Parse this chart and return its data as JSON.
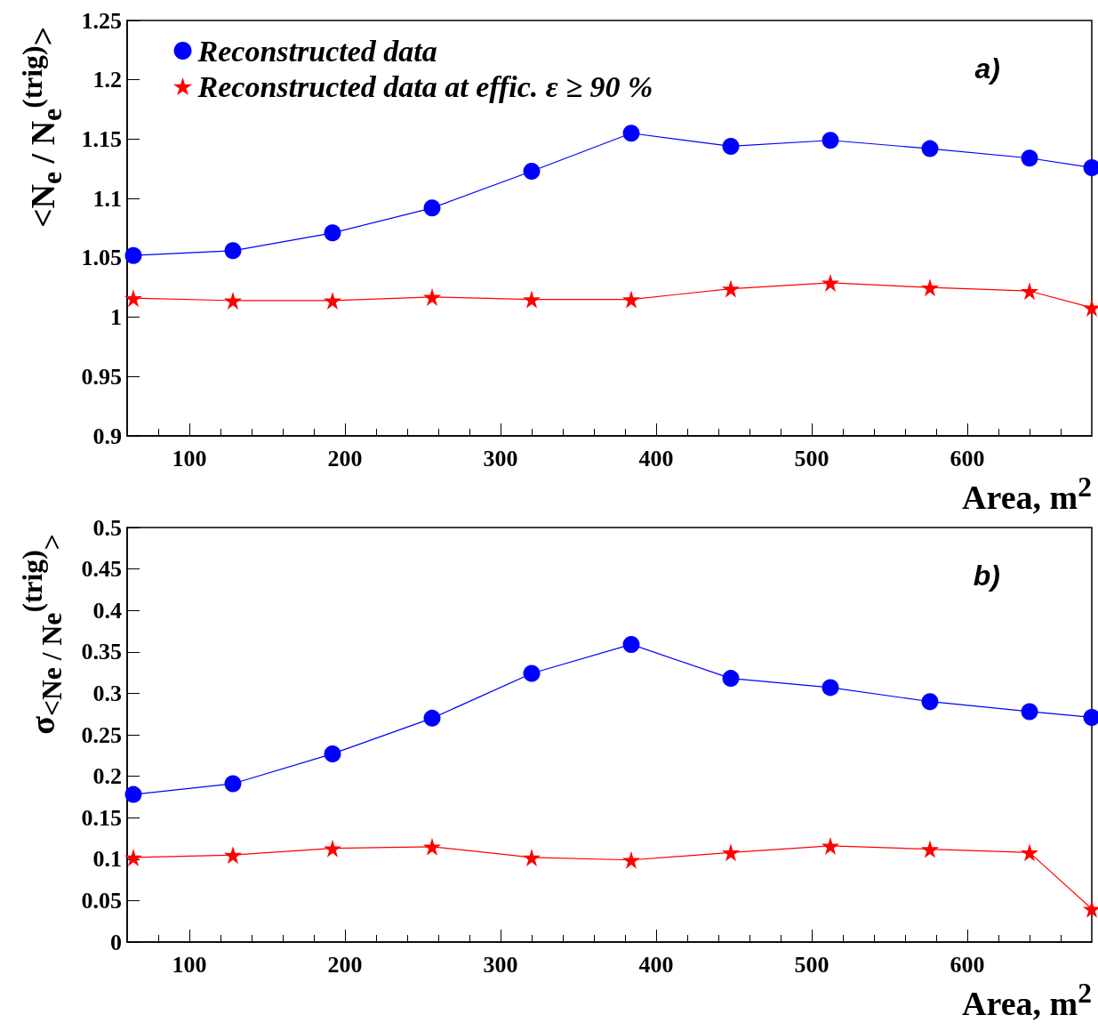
{
  "chart_data": [
    {
      "type": "line",
      "ylabel": "<N$_{e}$ / N$_{e}$$^{(trig)}$>",
      "xlabel": "Area, m$^{2}$",
      "xlim": [
        60,
        680
      ],
      "xticks": [
        100,
        200,
        300,
        400,
        500,
        600
      ],
      "ylim": [
        0.9,
        1.25
      ],
      "yticks": [
        0.9,
        0.95,
        1,
        1.05,
        1.1,
        1.15,
        1.2,
        1.25
      ],
      "grid": false,
      "legend": "top left",
      "line_style": "solid",
      "annotations": [
        "a)"
      ],
      "x": [
        64,
        128,
        192,
        256,
        320,
        384,
        448,
        512,
        576,
        640,
        680
      ],
      "series": [
        {
          "name": "Reconstructed data",
          "color": "#0000ff",
          "marker": "circle",
          "values": [
            1.052,
            1.056,
            1.071,
            1.092,
            1.123,
            1.155,
            1.144,
            1.149,
            1.142,
            1.134,
            1.126
          ]
        },
        {
          "name": "Reconstructed data at effic. ε ≥ 90 %",
          "color": "#ff0000",
          "marker": "star",
          "values": [
            1.016,
            1.014,
            1.014,
            1.017,
            1.015,
            1.015,
            1.024,
            1.029,
            1.025,
            1.022,
            1.008
          ]
        }
      ]
    },
    {
      "type": "line",
      "ylabel": "σ$_{<Ne / Ne}$$^{(trig)}$$_{>}$",
      "xlabel": "Area, m$^{2}$",
      "xlim": [
        60,
        680
      ],
      "xticks": [
        100,
        200,
        300,
        400,
        500,
        600
      ],
      "ylim": [
        0,
        0.5
      ],
      "yticks": [
        0,
        0.05,
        0.1,
        0.15,
        0.2,
        0.25,
        0.3,
        0.35,
        0.4,
        0.45,
        0.5
      ],
      "grid": false,
      "legend": false,
      "line_style": "solid",
      "annotations": [
        "b)"
      ],
      "x": [
        64,
        128,
        192,
        256,
        320,
        384,
        448,
        512,
        576,
        640,
        680
      ],
      "series": [
        {
          "color": "#0000ff",
          "marker": "circle",
          "values": [
            0.178,
            0.191,
            0.227,
            0.27,
            0.324,
            0.359,
            0.318,
            0.307,
            0.29,
            0.278,
            0.271
          ]
        },
        {
          "color": "#ff0000",
          "marker": "star",
          "values": [
            0.102,
            0.105,
            0.113,
            0.115,
            0.102,
            0.099,
            0.108,
            0.116,
            0.112,
            0.108,
            0.04
          ]
        }
      ]
    }
  ]
}
